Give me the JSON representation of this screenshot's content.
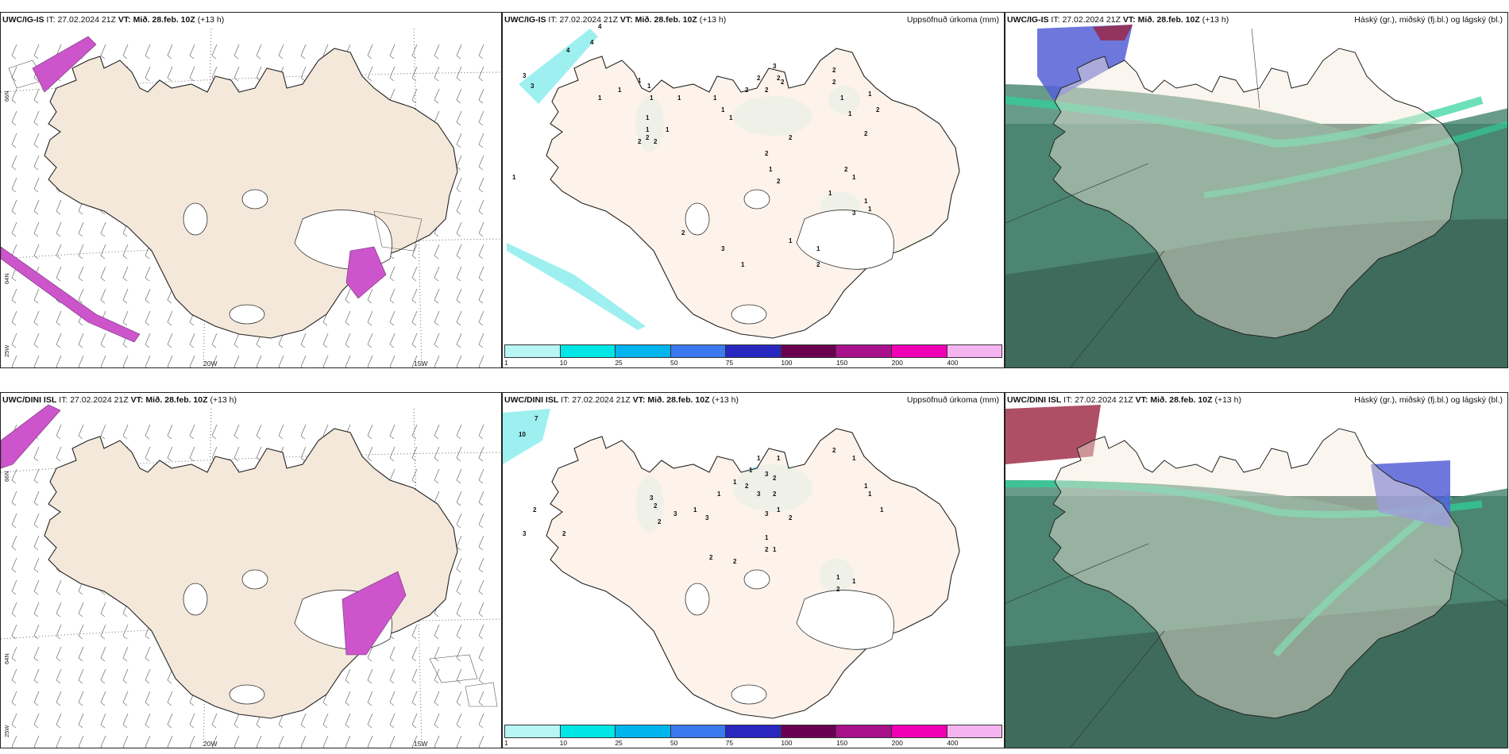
{
  "rows": [
    {
      "model": "UWC/IG-IS",
      "it_prefix": "IT:",
      "it": "27.02.2024 21Z",
      "vt_prefix": "VT:",
      "vt": "Mið. 28.feb. 10Z",
      "lead": "(+13 h)",
      "precip_numbers": [
        "4",
        "4",
        "4",
        "3",
        "3",
        "1",
        "1",
        "1",
        "1",
        "1",
        "1",
        "1",
        "2",
        "2",
        "2",
        "1",
        "1",
        "1",
        "1",
        "1",
        "2",
        "2",
        "2",
        "2",
        "3",
        "2",
        "2",
        "2",
        "1",
        "2",
        "2",
        "1",
        "1",
        "1",
        "2",
        "2",
        "2",
        "1",
        "1",
        "1",
        "1",
        "2",
        "1",
        "1",
        "2",
        "3",
        "1",
        "2",
        "3",
        "1"
      ]
    },
    {
      "model": "UWC/DINI ISL",
      "it_prefix": "IT:",
      "it": "27.02.2024 21Z",
      "vt_prefix": "VT:",
      "vt": "Mið. 28.feb. 10Z",
      "lead": "(+13 h)",
      "precip_numbers": [
        "7",
        "10",
        "2",
        "3",
        "2",
        "3",
        "2",
        "2",
        "3",
        "1",
        "3",
        "1",
        "1",
        "2",
        "1",
        "1",
        "3",
        "1",
        "2",
        "2",
        "1",
        "3",
        "3",
        "2",
        "1",
        "1",
        "2",
        "2",
        "2",
        "1",
        "1",
        "1",
        "1",
        "1",
        "1",
        "2",
        "2"
      ]
    }
  ],
  "precip_title": "Uppsöfnuð úrkoma (mm)",
  "cloud_title": "Háský (gr.), miðský (fj.bl.) og lágský (bl.)",
  "axis": {
    "lon_20w": "20W",
    "lon_15w": "15W",
    "lat_66n": "66N",
    "lat_64n": "64N",
    "lat_25w": "25W"
  },
  "colorbar": {
    "labels": [
      "1",
      "10",
      "25",
      "50",
      "75",
      "100",
      "150",
      "200",
      "400"
    ],
    "colors": [
      "#b8f5f5",
      "#00e6e6",
      "#00b4ee",
      "#3c78f0",
      "#2828c0",
      "#6a0050",
      "#a8108c",
      "#f000b4",
      "#f5b4f0"
    ]
  },
  "colors": {
    "land": "#f3e8da",
    "land_precip": "#fdf1e6",
    "precip_light": "#9ef0f0",
    "cloud_dark": "#3e6b5c",
    "cloud_mid": "#4f8a76",
    "cloud_green": "#2ed39a",
    "cloud_high_blue": "#5560d6",
    "cloud_high_red": "#9a2340"
  }
}
